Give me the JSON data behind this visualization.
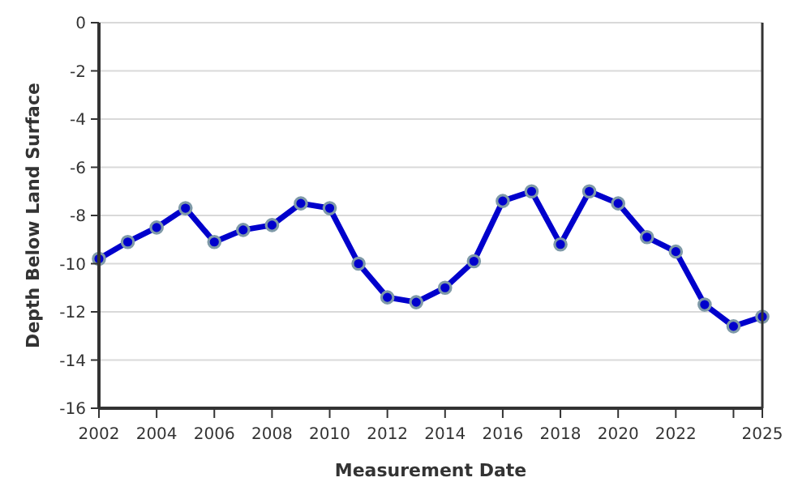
{
  "chart_data": {
    "type": "line",
    "xlabel": "Measurement Date",
    "ylabel": "Depth Below Land Surface",
    "x": [
      2002,
      2003,
      2004,
      2005,
      2006,
      2007,
      2008,
      2009,
      2010,
      2011,
      2012,
      2013,
      2014,
      2015,
      2016,
      2017,
      2018,
      2019,
      2020,
      2021,
      2022,
      2023,
      2024,
      2025
    ],
    "series": [
      {
        "color": "#0000cc",
        "values": [
          -9.8,
          -9.1,
          -8.5,
          -7.7,
          -9.1,
          -8.6,
          -8.4,
          -7.5,
          -7.7,
          -10.0,
          -11.4,
          -11.6,
          -11.0,
          -9.9,
          -7.4,
          -7.0,
          -9.2,
          -7.0,
          -7.5,
          -8.9,
          -9.5,
          -11.7,
          -12.6,
          -12.2
        ]
      }
    ],
    "xlim": [
      2002,
      2025
    ],
    "xticks": [
      2002,
      2004,
      2006,
      2008,
      2010,
      2012,
      2014,
      2016,
      2018,
      2020,
      2022,
      {
        "value": 2024,
        "label": null
      },
      2025
    ],
    "ylim": [
      -16,
      0
    ],
    "yticks": [
      0,
      -2,
      -4,
      -6,
      -8,
      -10,
      -12,
      -14,
      -16
    ],
    "grid": "y",
    "marker": "circle",
    "line_style": "solid"
  }
}
